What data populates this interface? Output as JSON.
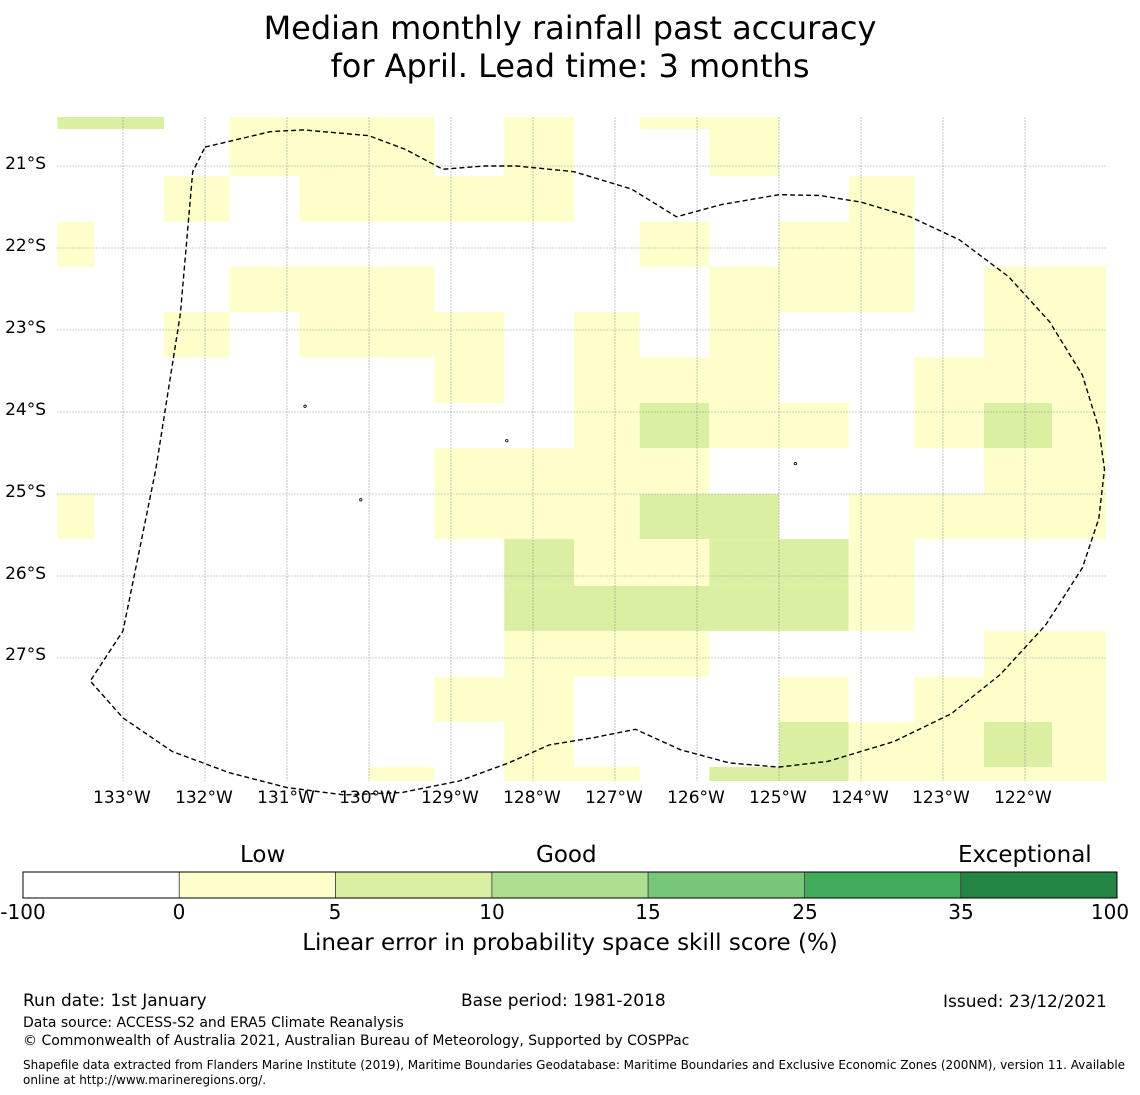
{
  "title": {
    "line1": "Median monthly rainfall past accuracy",
    "line2": "for April. Lead time: 3 months"
  },
  "colors": {
    "low": "#ffffcc",
    "light_green": "#d9f0a3",
    "mid_green": "#addd8e",
    "green": "#78c679",
    "strong_green": "#41ab5d",
    "dark_green": "#238443",
    "none": "#ffffff"
  },
  "map": {
    "lon_range": [
      -133.8,
      -121.0
    ],
    "lat_range": [
      -20.4,
      -28.5
    ],
    "lat_labels": [
      "21°S",
      "22°S",
      "23°S",
      "24°S",
      "25°S",
      "26°S",
      "27°S"
    ],
    "lon_labels": [
      "133°W",
      "132°W",
      "131°W",
      "130°W",
      "129°W",
      "128°W",
      "127°W",
      "126°W",
      "125°W",
      "124°W",
      "123°W",
      "122°W"
    ],
    "grid_lats": [
      -21,
      -22,
      -23,
      -24,
      -25,
      -26,
      -27
    ],
    "grid_lons": [
      -133,
      -132,
      -131,
      -130,
      -129,
      -128,
      -127,
      -126,
      -125,
      -124,
      -123,
      -122
    ],
    "skill_cells": [
      {
        "lon": [
          -133.8,
          -132.5
        ],
        "lat": [
          -20.4,
          -20.55
        ],
        "class": "light_green"
      },
      {
        "lon": [
          -131.7,
          -129.2
        ],
        "lat": [
          -20.4,
          -21.12
        ],
        "class": "low"
      },
      {
        "lon": [
          -128.35,
          -127.5
        ],
        "lat": [
          -20.4,
          -21.12
        ],
        "class": "low"
      },
      {
        "lon": [
          -126.7,
          -125.0
        ],
        "lat": [
          -20.4,
          -20.55
        ],
        "class": "low"
      },
      {
        "lon": [
          -125.85,
          -125.0
        ],
        "lat": [
          -20.55,
          -21.12
        ],
        "class": "low"
      },
      {
        "lon": [
          -132.5,
          -131.7
        ],
        "lat": [
          -21.12,
          -21.68
        ],
        "class": "low"
      },
      {
        "lon": [
          -130.85,
          -127.5
        ],
        "lat": [
          -21.12,
          -21.68
        ],
        "class": "low"
      },
      {
        "lon": [
          -124.15,
          -123.35
        ],
        "lat": [
          -21.12,
          -21.68
        ],
        "class": "low"
      },
      {
        "lon": [
          -133.8,
          -133.35
        ],
        "lat": [
          -21.68,
          -22.23
        ],
        "class": "low"
      },
      {
        "lon": [
          -126.7,
          -125.85
        ],
        "lat": [
          -21.68,
          -22.23
        ],
        "class": "low"
      },
      {
        "lon": [
          -125.0,
          -123.35
        ],
        "lat": [
          -21.68,
          -22.23
        ],
        "class": "low"
      },
      {
        "lon": [
          -131.7,
          -129.2
        ],
        "lat": [
          -22.23,
          -22.78
        ],
        "class": "low"
      },
      {
        "lon": [
          -125.85,
          -123.35
        ],
        "lat": [
          -22.23,
          -22.78
        ],
        "class": "low"
      },
      {
        "lon": [
          -122.5,
          -121.0
        ],
        "lat": [
          -22.23,
          -22.78
        ],
        "class": "low"
      },
      {
        "lon": [
          -132.5,
          -131.7
        ],
        "lat": [
          -22.78,
          -23.33
        ],
        "class": "low"
      },
      {
        "lon": [
          -130.85,
          -128.35
        ],
        "lat": [
          -22.78,
          -23.33
        ],
        "class": "low"
      },
      {
        "lon": [
          -127.5,
          -126.7
        ],
        "lat": [
          -22.78,
          -23.33
        ],
        "class": "low"
      },
      {
        "lon": [
          -125.85,
          -125.0
        ],
        "lat": [
          -22.78,
          -23.33
        ],
        "class": "low"
      },
      {
        "lon": [
          -122.5,
          -121.0
        ],
        "lat": [
          -22.78,
          -23.33
        ],
        "class": "low"
      },
      {
        "lon": [
          -129.2,
          -128.35
        ],
        "lat": [
          -23.33,
          -23.89
        ],
        "class": "low"
      },
      {
        "lon": [
          -127.5,
          -125.0
        ],
        "lat": [
          -23.33,
          -23.89
        ],
        "class": "low"
      },
      {
        "lon": [
          -123.35,
          -121.0
        ],
        "lat": [
          -23.33,
          -23.89
        ],
        "class": "low"
      },
      {
        "lon": [
          -127.5,
          -126.7
        ],
        "lat": [
          -23.89,
          -24.44
        ],
        "class": "low"
      },
      {
        "lon": [
          -126.7,
          -125.85
        ],
        "lat": [
          -23.89,
          -24.44
        ],
        "class": "light_green"
      },
      {
        "lon": [
          -125.85,
          -124.15
        ],
        "lat": [
          -23.89,
          -24.44
        ],
        "class": "low"
      },
      {
        "lon": [
          -123.35,
          -122.5
        ],
        "lat": [
          -23.89,
          -24.44
        ],
        "class": "low"
      },
      {
        "lon": [
          -122.5,
          -121.67
        ],
        "lat": [
          -23.89,
          -24.44
        ],
        "class": "light_green"
      },
      {
        "lon": [
          -121.67,
          -121.0
        ],
        "lat": [
          -23.89,
          -24.44
        ],
        "class": "low"
      },
      {
        "lon": [
          -129.2,
          -125.85
        ],
        "lat": [
          -24.44,
          -25.0
        ],
        "class": "low"
      },
      {
        "lon": [
          -122.5,
          -121.0
        ],
        "lat": [
          -24.44,
          -25.0
        ],
        "class": "low"
      },
      {
        "lon": [
          -133.8,
          -133.35
        ],
        "lat": [
          -25.0,
          -25.55
        ],
        "class": "low"
      },
      {
        "lon": [
          -129.2,
          -126.7
        ],
        "lat": [
          -25.0,
          -25.55
        ],
        "class": "low"
      },
      {
        "lon": [
          -126.7,
          -125.0
        ],
        "lat": [
          -25.0,
          -25.55
        ],
        "class": "light_green"
      },
      {
        "lon": [
          -124.15,
          -121.0
        ],
        "lat": [
          -25.0,
          -25.55
        ],
        "class": "low"
      },
      {
        "lon": [
          -128.35,
          -127.5
        ],
        "lat": [
          -25.55,
          -26.12
        ],
        "class": "light_green"
      },
      {
        "lon": [
          -127.5,
          -125.85
        ],
        "lat": [
          -25.55,
          -26.12
        ],
        "class": "low"
      },
      {
        "lon": [
          -125.85,
          -124.15
        ],
        "lat": [
          -25.55,
          -26.12
        ],
        "class": "light_green"
      },
      {
        "lon": [
          -124.15,
          -123.35
        ],
        "lat": [
          -25.55,
          -26.12
        ],
        "class": "low"
      },
      {
        "lon": [
          -128.35,
          -124.15
        ],
        "lat": [
          -26.12,
          -26.67
        ],
        "class": "light_green"
      },
      {
        "lon": [
          -124.15,
          -123.35
        ],
        "lat": [
          -26.12,
          -26.67
        ],
        "class": "low"
      },
      {
        "lon": [
          -128.35,
          -125.85
        ],
        "lat": [
          -26.67,
          -27.23
        ],
        "class": "low"
      },
      {
        "lon": [
          -122.5,
          -121.0
        ],
        "lat": [
          -26.67,
          -27.23
        ],
        "class": "low"
      },
      {
        "lon": [
          -129.2,
          -127.5
        ],
        "lat": [
          -27.23,
          -27.78
        ],
        "class": "low"
      },
      {
        "lon": [
          -125.0,
          -124.15
        ],
        "lat": [
          -27.23,
          -27.78
        ],
        "class": "low"
      },
      {
        "lon": [
          -123.35,
          -121.0
        ],
        "lat": [
          -27.23,
          -27.78
        ],
        "class": "low"
      },
      {
        "lon": [
          -128.35,
          -127.5
        ],
        "lat": [
          -27.78,
          -28.33
        ],
        "class": "low"
      },
      {
        "lon": [
          -125.0,
          -124.15
        ],
        "lat": [
          -27.78,
          -28.33
        ],
        "class": "light_green"
      },
      {
        "lon": [
          -124.15,
          -122.5
        ],
        "lat": [
          -27.78,
          -28.33
        ],
        "class": "low"
      },
      {
        "lon": [
          -122.5,
          -121.67
        ],
        "lat": [
          -27.78,
          -28.33
        ],
        "class": "light_green"
      },
      {
        "lon": [
          -121.67,
          -121.0
        ],
        "lat": [
          -27.78,
          -28.33
        ],
        "class": "low"
      },
      {
        "lon": [
          -130.0,
          -129.2
        ],
        "lat": [
          -28.33,
          -28.5
        ],
        "class": "low"
      },
      {
        "lon": [
          -128.35,
          -126.7
        ],
        "lat": [
          -28.33,
          -28.5
        ],
        "class": "low"
      },
      {
        "lon": [
          -125.85,
          -125.0
        ],
        "lat": [
          -28.33,
          -28.5
        ],
        "class": "light_green"
      },
      {
        "lon": [
          -125.0,
          -124.15
        ],
        "lat": [
          -28.33,
          -28.5
        ],
        "class": "light_green"
      },
      {
        "lon": [
          -124.15,
          -121.0
        ],
        "lat": [
          -28.33,
          -28.5
        ],
        "class": "low"
      }
    ],
    "eez_boundary": [
      [
        -132.0,
        -20.77
      ],
      [
        -131.2,
        -20.58
      ],
      [
        -130.8,
        -20.56
      ],
      [
        -130.0,
        -20.63
      ],
      [
        -129.55,
        -20.8
      ],
      [
        -129.1,
        -21.04
      ],
      [
        -128.6,
        -21.0
      ],
      [
        -128.2,
        -21.0
      ],
      [
        -127.5,
        -21.07
      ],
      [
        -126.8,
        -21.28
      ],
      [
        -126.25,
        -21.62
      ],
      [
        -125.7,
        -21.47
      ],
      [
        -125.0,
        -21.35
      ],
      [
        -124.5,
        -21.36
      ],
      [
        -124.0,
        -21.44
      ],
      [
        -123.4,
        -21.62
      ],
      [
        -122.8,
        -21.9
      ],
      [
        -122.2,
        -22.35
      ],
      [
        -121.7,
        -22.9
      ],
      [
        -121.3,
        -23.55
      ],
      [
        -121.1,
        -24.2
      ],
      [
        -121.03,
        -24.7
      ],
      [
        -121.1,
        -25.3
      ],
      [
        -121.3,
        -25.9
      ],
      [
        -121.75,
        -26.6
      ],
      [
        -122.3,
        -27.2
      ],
      [
        -122.9,
        -27.68
      ],
      [
        -123.6,
        -28.02
      ],
      [
        -124.4,
        -28.26
      ],
      [
        -125.0,
        -28.33
      ],
      [
        -125.6,
        -28.28
      ],
      [
        -126.2,
        -28.12
      ],
      [
        -126.75,
        -27.87
      ],
      [
        -127.25,
        -27.97
      ],
      [
        -127.8,
        -28.06
      ],
      [
        -128.3,
        -28.28
      ],
      [
        -128.9,
        -28.5
      ],
      [
        -129.6,
        -28.64
      ],
      [
        -130.3,
        -28.67
      ],
      [
        -131.0,
        -28.58
      ],
      [
        -131.7,
        -28.4
      ],
      [
        -132.4,
        -28.14
      ],
      [
        -133.0,
        -27.73
      ],
      [
        -133.4,
        -27.28
      ],
      [
        -133.0,
        -26.67
      ],
      [
        -132.6,
        -24.7
      ],
      [
        -132.3,
        -22.8
      ],
      [
        -132.15,
        -21.07
      ],
      [
        -132.0,
        -20.77
      ]
    ],
    "islands": [
      {
        "lon": -130.78,
        "lat": -23.93
      },
      {
        "lon": -128.32,
        "lat": -24.35
      },
      {
        "lon": -130.1,
        "lat": -25.07
      },
      {
        "lon": -124.8,
        "lat": -24.63
      }
    ]
  },
  "colorbar": {
    "categories": [
      "Low",
      "Good",
      "Exceptional"
    ],
    "ticks": [
      "-100",
      "0",
      "5",
      "10",
      "15",
      "25",
      "35",
      "100"
    ],
    "segment_classes": [
      "none",
      "low",
      "light_green",
      "mid_green",
      "green",
      "strong_green",
      "dark_green"
    ],
    "label": "Linear error in probability space skill score (%)"
  },
  "footer": {
    "run_date": "Run date: 1st January",
    "base_period": "Base period: 1981-2018",
    "issued": "Issued: 23/12/2021",
    "data_source": "Data source: ACCESS-S2 and ERA5 Climate Reanalysis",
    "copyright": "© Commonwealth of Australia 2021, Australian Bureau of Meteorology, Supported by COSPPac",
    "shapefile": "Shapefile data extracted from Flanders Marine Institute (2019), Maritime Boundaries Geodatabase: Maritime Boundaries and Exclusive Economic Zones (200NM), version 11. Available online at http://www.marineregions.org/."
  }
}
